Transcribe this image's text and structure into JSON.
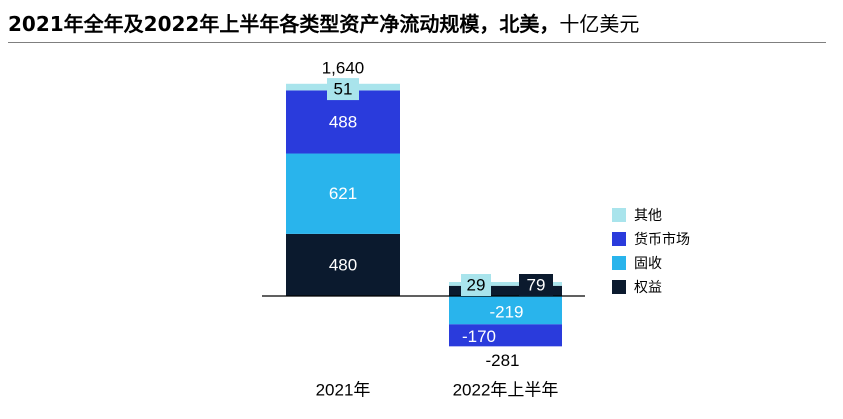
{
  "title": {
    "main": "2021年全年及2022年上半年各类型资产净流动规模，北美，",
    "unit": "十亿美元"
  },
  "colors": {
    "其他": "#a9e4ec",
    "货币市场": "#2a3bdc",
    "固收": "#29b4ec",
    "权益": "#0b1a2e"
  },
  "chart_data": {
    "type": "bar",
    "stacked": true,
    "title": "2021年全年及2022年上半年各类型资产净流动规模，北美，十亿美元",
    "categories": [
      "2021年",
      "2022年上半年"
    ],
    "series": [
      {
        "name": "权益",
        "values": [
          480,
          79
        ]
      },
      {
        "name": "固收",
        "values": [
          621,
          -219
        ]
      },
      {
        "name": "货币市场",
        "values": [
          488,
          -170
        ]
      },
      {
        "name": "其他",
        "values": [
          51,
          29
        ]
      }
    ],
    "totals": [
      "1,640",
      "-281"
    ],
    "legend": [
      "其他",
      "货币市场",
      "固收",
      "权益"
    ],
    "legend_position": "right",
    "grid": false
  }
}
